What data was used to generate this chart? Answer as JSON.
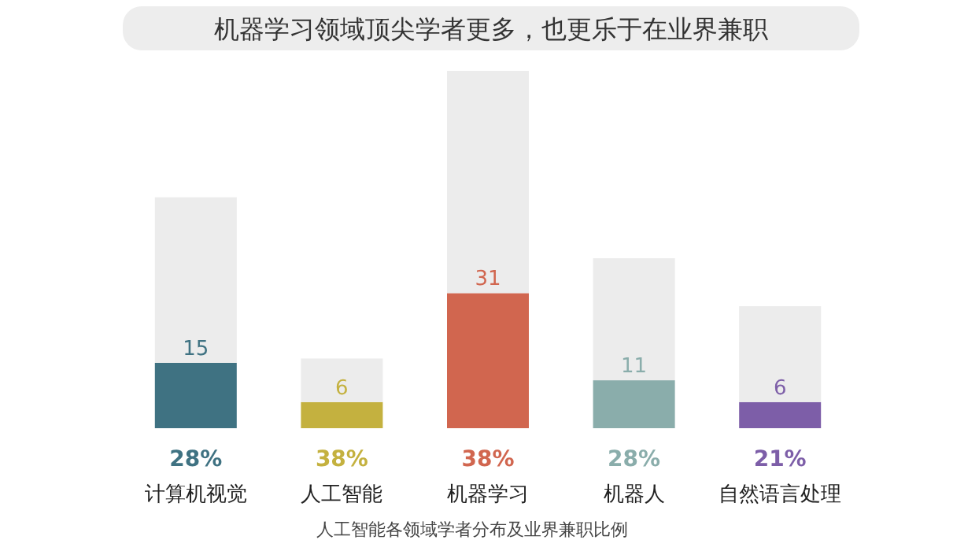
{
  "chart_data": {
    "type": "bar",
    "title": "机器学习领域顶尖学者更多，也更乐于在业界兼职",
    "categories": [
      "计算机视觉",
      "人工智能",
      "机器学习",
      "机器人",
      "自然语言处理"
    ],
    "stacked": true,
    "series": [
      {
        "colors": [
          "#3f7282",
          "#c4b13f",
          "#d1664f",
          "#8aadab",
          "#7d5ea8"
        ],
        "values": [
          15,
          6,
          31,
          11,
          6
        ],
        "value_labels": [
          "15",
          "6",
          "31",
          "11",
          "6"
        ]
      },
      {
        "color": "#ececec",
        "values": [
          38,
          10,
          51,
          28,
          22
        ]
      }
    ],
    "annotations": [
      "28%",
      "38%",
      "38%",
      "28%",
      "21%",
      "人工智能各领域学者分布及业界兼职比例"
    ]
  }
}
